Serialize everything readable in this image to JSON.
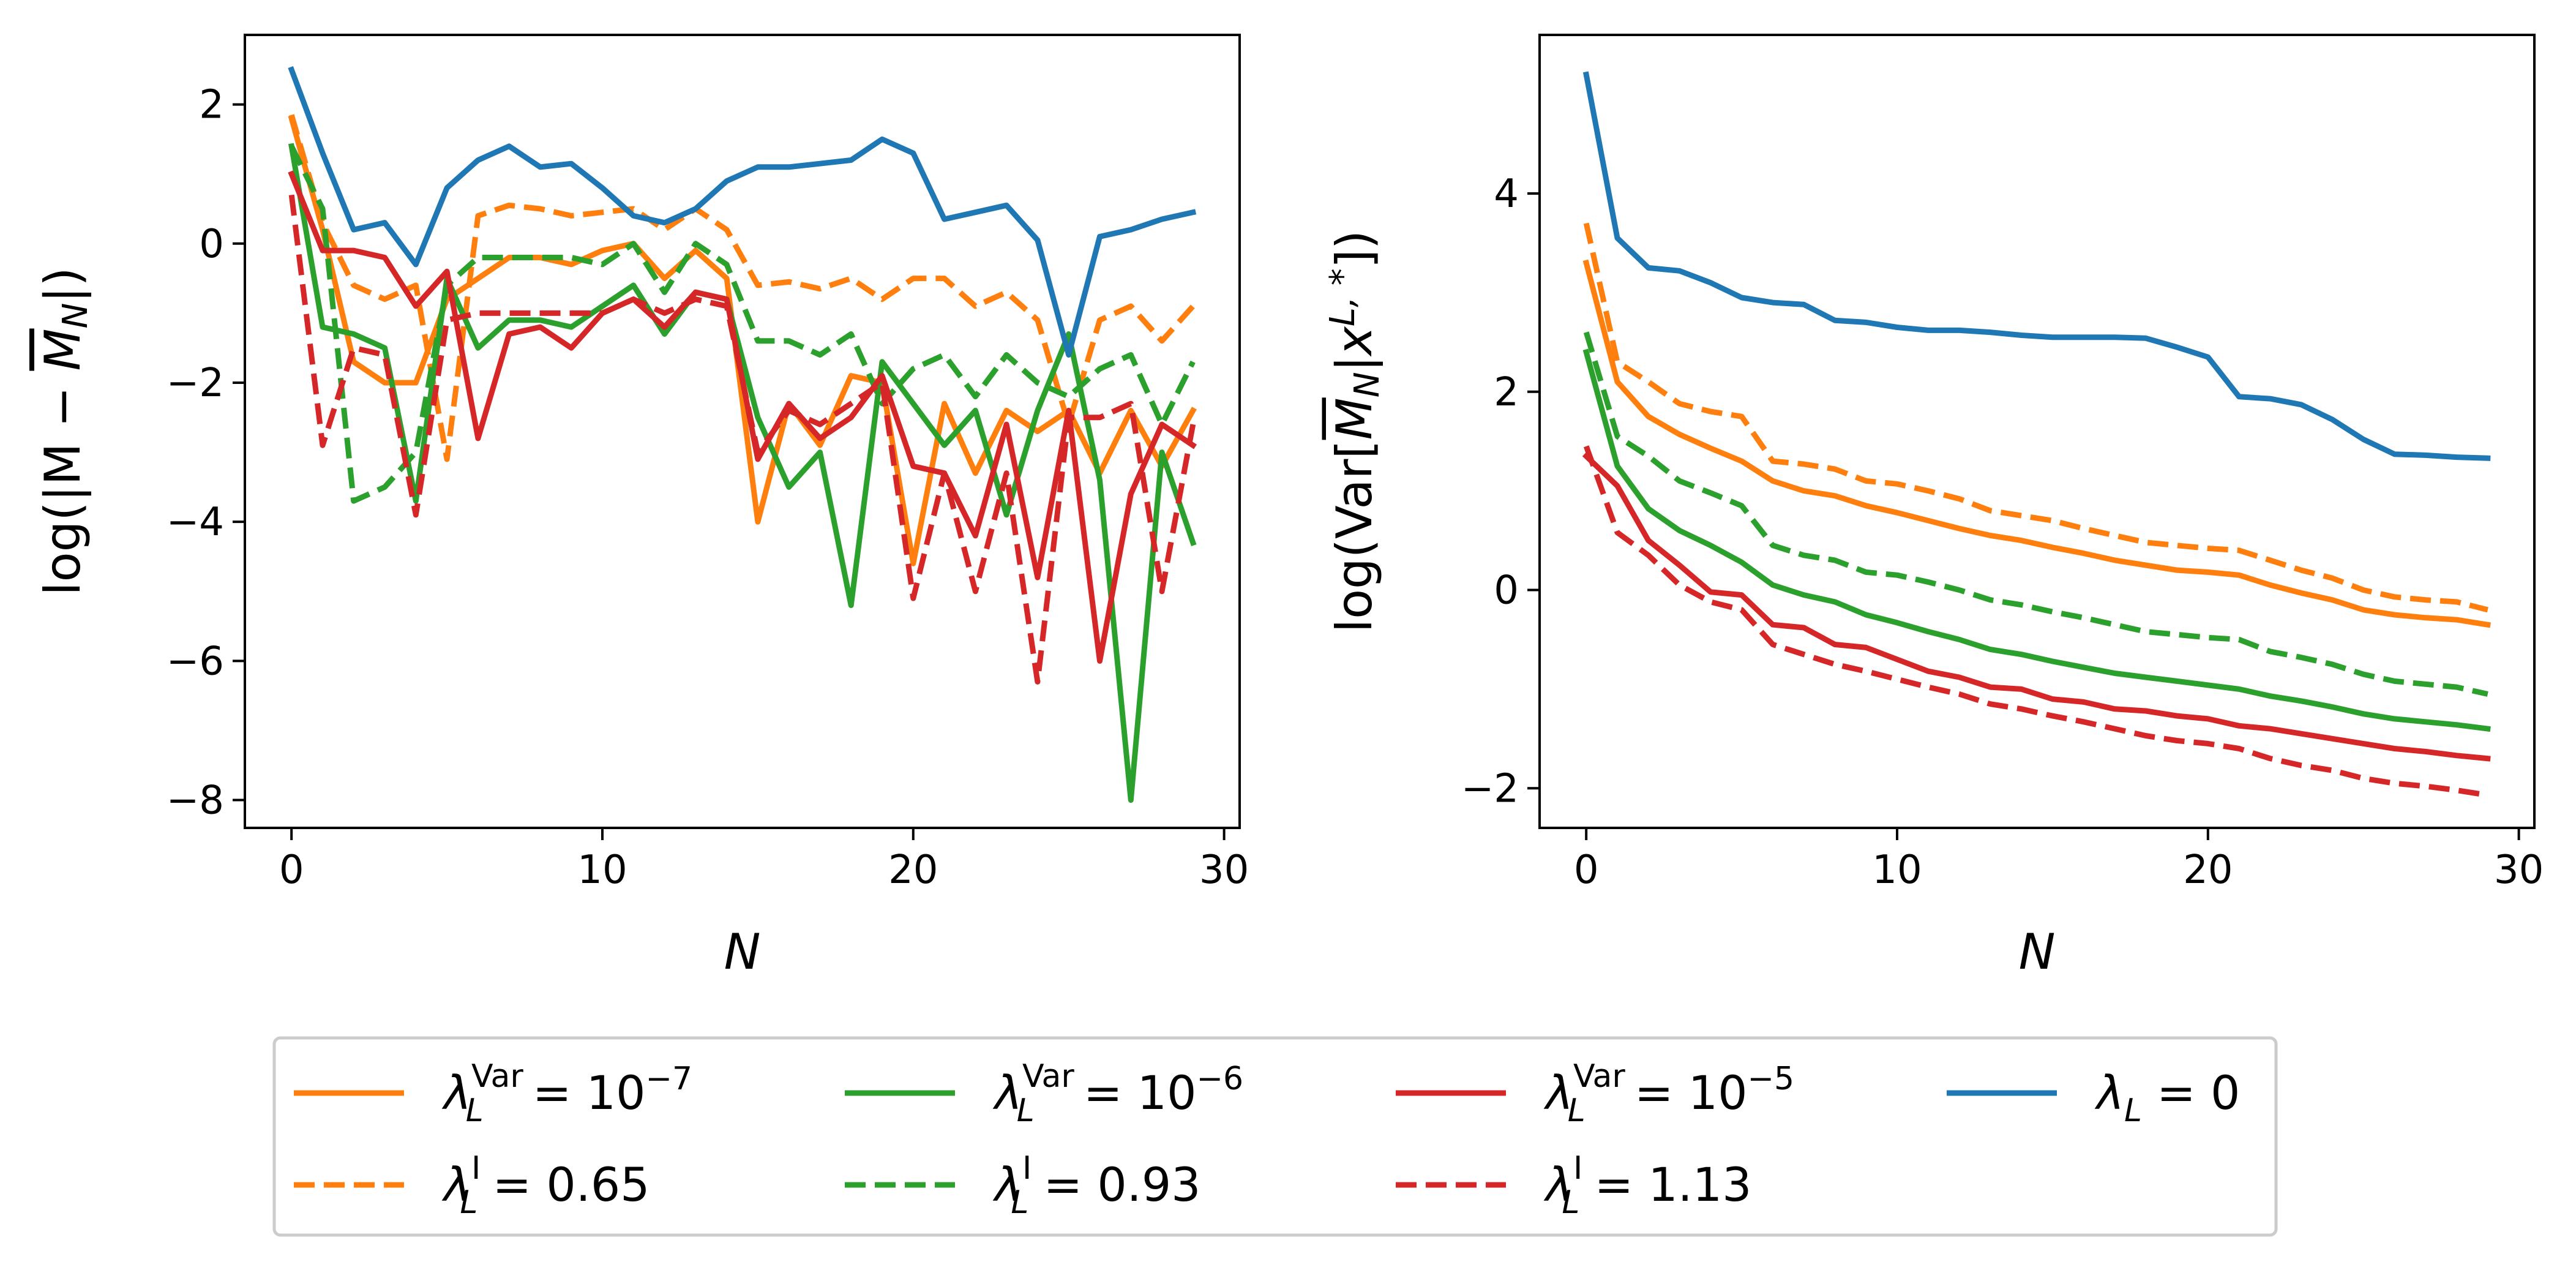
{
  "chart_data": [
    {
      "type": "line",
      "xlabel": "N",
      "ylabel": "log(|M − M̄N|)",
      "ylabel_parts": {
        "prefix": "log(|M − ",
        "mbar": "M",
        "sub": "N",
        "suffix": "|)"
      },
      "xlim": [
        -1.5,
        30.5
      ],
      "ylim": [
        -8.4,
        3.0
      ],
      "xticks": [
        0,
        10,
        20,
        30
      ],
      "yticks": [
        -8,
        -6,
        -4,
        -2,
        0,
        2
      ],
      "x": [
        0,
        1,
        2,
        3,
        4,
        5,
        6,
        7,
        8,
        9,
        10,
        11,
        12,
        13,
        14,
        15,
        16,
        17,
        18,
        19,
        20,
        21,
        22,
        23,
        24,
        25,
        26,
        27,
        28,
        29
      ],
      "series": [
        {
          "key": "var7",
          "values": [
            1.8,
            0.2,
            -1.7,
            -2.0,
            -2.0,
            -0.8,
            -0.5,
            -0.2,
            -0.2,
            -0.3,
            -0.1,
            0.0,
            -0.5,
            -0.1,
            -0.5,
            -4.0,
            -2.3,
            -2.9,
            -1.9,
            -2.0,
            -4.6,
            -2.3,
            -3.3,
            -2.4,
            -2.7,
            -2.4,
            -3.3,
            -2.4,
            -3.2,
            -2.4
          ]
        },
        {
          "key": "i065",
          "values": [
            1.85,
            0.3,
            -0.6,
            -0.8,
            -0.6,
            -3.1,
            0.4,
            0.55,
            0.5,
            0.4,
            0.45,
            0.5,
            0.2,
            0.5,
            0.2,
            -0.6,
            -0.55,
            -0.65,
            -0.5,
            -0.8,
            -0.5,
            -0.5,
            -0.9,
            -0.7,
            -1.1,
            -2.6,
            -1.1,
            -0.9,
            -1.4,
            -0.9
          ]
        },
        {
          "key": "var6",
          "values": [
            1.4,
            -1.2,
            -1.3,
            -1.5,
            -3.7,
            -0.5,
            -1.5,
            -1.1,
            -1.1,
            -1.2,
            -0.9,
            -0.6,
            -1.3,
            -0.7,
            -0.8,
            -2.5,
            -3.5,
            -3.0,
            -5.2,
            -1.7,
            -2.3,
            -2.9,
            -2.4,
            -3.9,
            -2.4,
            -1.3,
            -3.4,
            -8.0,
            -3.0,
            -4.3
          ]
        },
        {
          "key": "i093",
          "values": [
            1.4,
            0.5,
            -3.7,
            -3.5,
            -3.0,
            -0.6,
            -0.2,
            -0.2,
            -0.2,
            -0.2,
            -0.3,
            0.0,
            -0.7,
            0.0,
            -0.3,
            -1.4,
            -1.4,
            -1.6,
            -1.3,
            -2.3,
            -1.8,
            -1.6,
            -2.2,
            -1.6,
            -2.0,
            -2.2,
            -1.8,
            -1.6,
            -2.6,
            -1.7
          ]
        },
        {
          "key": "var5",
          "values": [
            1.0,
            -0.1,
            -0.1,
            -0.2,
            -0.9,
            -0.4,
            -2.8,
            -1.3,
            -1.2,
            -1.5,
            -1.0,
            -0.8,
            -1.2,
            -0.7,
            -0.8,
            -3.1,
            -2.3,
            -2.8,
            -2.5,
            -1.9,
            -3.2,
            -3.3,
            -4.2,
            -2.6,
            -4.8,
            -2.4,
            -6.0,
            -3.6,
            -2.6,
            -2.9
          ]
        },
        {
          "key": "i113",
          "values": [
            0.7,
            -2.9,
            -1.5,
            -1.6,
            -3.9,
            -1.1,
            -1.0,
            -1.0,
            -1.0,
            -1.0,
            -1.0,
            -0.8,
            -1.0,
            -0.8,
            -0.9,
            -3.0,
            -2.4,
            -2.6,
            -2.3,
            -2.0,
            -5.1,
            -3.3,
            -5.0,
            -3.3,
            -6.3,
            -2.5,
            -2.5,
            -2.3,
            -5.0,
            -2.6
          ]
        },
        {
          "key": "zero",
          "values": [
            2.5,
            1.3,
            0.2,
            0.3,
            -0.3,
            0.8,
            1.2,
            1.4,
            1.1,
            1.15,
            0.8,
            0.4,
            0.3,
            0.5,
            0.9,
            1.1,
            1.1,
            1.15,
            1.2,
            1.5,
            1.3,
            0.35,
            0.45,
            0.55,
            0.05,
            -1.6,
            0.1,
            0.2,
            0.35,
            0.45
          ]
        }
      ]
    },
    {
      "type": "line",
      "xlabel": "N",
      "ylabel": "log(Var[M̄N|xL,*])",
      "ylabel_parts": {
        "prefix": "log(Var[",
        "mbar": "M",
        "sub": "N",
        "mid": "|x",
        "sup": "L, *",
        "suffix": "])"
      },
      "xlim": [
        -1.5,
        30.5
      ],
      "ylim": [
        -2.4,
        5.6
      ],
      "xticks": [
        0,
        10,
        20,
        30
      ],
      "yticks": [
        -2,
        0,
        2,
        4
      ],
      "x": [
        0,
        1,
        2,
        3,
        4,
        5,
        6,
        7,
        8,
        9,
        10,
        11,
        12,
        13,
        14,
        15,
        16,
        17,
        18,
        19,
        20,
        21,
        22,
        23,
        24,
        25,
        26,
        27,
        28,
        29
      ],
      "series": [
        {
          "key": "var7",
          "values": [
            3.3,
            2.1,
            1.75,
            1.57,
            1.43,
            1.3,
            1.1,
            1.0,
            0.95,
            0.85,
            0.78,
            0.7,
            0.62,
            0.55,
            0.5,
            0.43,
            0.37,
            0.3,
            0.25,
            0.2,
            0.18,
            0.15,
            0.05,
            -0.03,
            -0.1,
            -0.2,
            -0.25,
            -0.28,
            -0.3,
            -0.35
          ]
        },
        {
          "key": "i065",
          "values": [
            3.7,
            2.3,
            2.1,
            1.88,
            1.8,
            1.75,
            1.3,
            1.27,
            1.22,
            1.1,
            1.07,
            1.0,
            0.92,
            0.8,
            0.75,
            0.7,
            0.62,
            0.55,
            0.48,
            0.45,
            0.42,
            0.4,
            0.3,
            0.2,
            0.12,
            0.0,
            -0.07,
            -0.1,
            -0.12,
            -0.2
          ]
        },
        {
          "key": "var6",
          "values": [
            2.4,
            1.25,
            0.82,
            0.6,
            0.45,
            0.28,
            0.05,
            -0.05,
            -0.12,
            -0.25,
            -0.33,
            -0.42,
            -0.5,
            -0.6,
            -0.65,
            -0.72,
            -0.78,
            -0.84,
            -0.88,
            -0.92,
            -0.96,
            -1.0,
            -1.07,
            -1.12,
            -1.18,
            -1.25,
            -1.3,
            -1.33,
            -1.36,
            -1.4
          ]
        },
        {
          "key": "i093",
          "values": [
            2.6,
            1.55,
            1.35,
            1.1,
            0.98,
            0.85,
            0.45,
            0.35,
            0.3,
            0.18,
            0.15,
            0.08,
            0.0,
            -0.1,
            -0.15,
            -0.22,
            -0.28,
            -0.35,
            -0.42,
            -0.45,
            -0.48,
            -0.5,
            -0.62,
            -0.68,
            -0.75,
            -0.85,
            -0.92,
            -0.95,
            -0.98,
            -1.05
          ]
        },
        {
          "key": "var5",
          "values": [
            1.35,
            1.05,
            0.5,
            0.25,
            -0.02,
            -0.05,
            -0.35,
            -0.38,
            -0.55,
            -0.58,
            -0.7,
            -0.82,
            -0.88,
            -0.98,
            -1.0,
            -1.1,
            -1.13,
            -1.2,
            -1.22,
            -1.27,
            -1.3,
            -1.37,
            -1.4,
            -1.45,
            -1.5,
            -1.55,
            -1.6,
            -1.63,
            -1.67,
            -1.7
          ]
        },
        {
          "key": "i113",
          "values": [
            1.45,
            0.58,
            0.35,
            0.05,
            -0.12,
            -0.2,
            -0.55,
            -0.65,
            -0.75,
            -0.82,
            -0.9,
            -0.98,
            -1.05,
            -1.15,
            -1.2,
            -1.27,
            -1.33,
            -1.4,
            -1.47,
            -1.52,
            -1.55,
            -1.6,
            -1.7,
            -1.77,
            -1.82,
            -1.9,
            -1.95,
            -1.98,
            -2.02,
            -2.07
          ]
        },
        {
          "key": "zero",
          "values": [
            5.2,
            3.55,
            3.25,
            3.22,
            3.1,
            2.95,
            2.9,
            2.88,
            2.72,
            2.7,
            2.65,
            2.62,
            2.62,
            2.6,
            2.57,
            2.55,
            2.55,
            2.55,
            2.54,
            2.45,
            2.35,
            1.95,
            1.93,
            1.87,
            1.72,
            1.52,
            1.37,
            1.36,
            1.34,
            1.33
          ]
        }
      ]
    }
  ],
  "legend": {
    "placement": "bottom-center",
    "items": [
      {
        "key": "var7",
        "color": "#ff7f0e",
        "dash": "solid",
        "sym": "λ",
        "sub": "L",
        "sup": "Var",
        "rel": " = 10",
        "exp": "−7",
        "val": ""
      },
      {
        "key": "var6",
        "color": "#2ca02c",
        "dash": "solid",
        "sym": "λ",
        "sub": "L",
        "sup": "Var",
        "rel": " = 10",
        "exp": "−6",
        "val": ""
      },
      {
        "key": "var5",
        "color": "#d62728",
        "dash": "solid",
        "sym": "λ",
        "sub": "L",
        "sup": "Var",
        "rel": " = 10",
        "exp": "−5",
        "val": ""
      },
      {
        "key": "zero",
        "color": "#1f77b4",
        "dash": "solid",
        "sym": "λ",
        "sub": "L",
        "sup": "",
        "rel": " = 0",
        "exp": "",
        "val": ""
      },
      {
        "key": "i065",
        "color": "#ff7f0e",
        "dash": "dashed",
        "sym": "λ",
        "sub": "L",
        "sup": "I",
        "rel": " = ",
        "exp": "",
        "val": "0.65"
      },
      {
        "key": "i093",
        "color": "#2ca02c",
        "dash": "dashed",
        "sym": "λ",
        "sub": "L",
        "sup": "I",
        "rel": " = ",
        "exp": "",
        "val": "0.93"
      },
      {
        "key": "i113",
        "color": "#d62728",
        "dash": "dashed",
        "sym": "λ",
        "sub": "L",
        "sup": "I",
        "rel": " = ",
        "exp": "",
        "val": "1.13"
      }
    ]
  }
}
